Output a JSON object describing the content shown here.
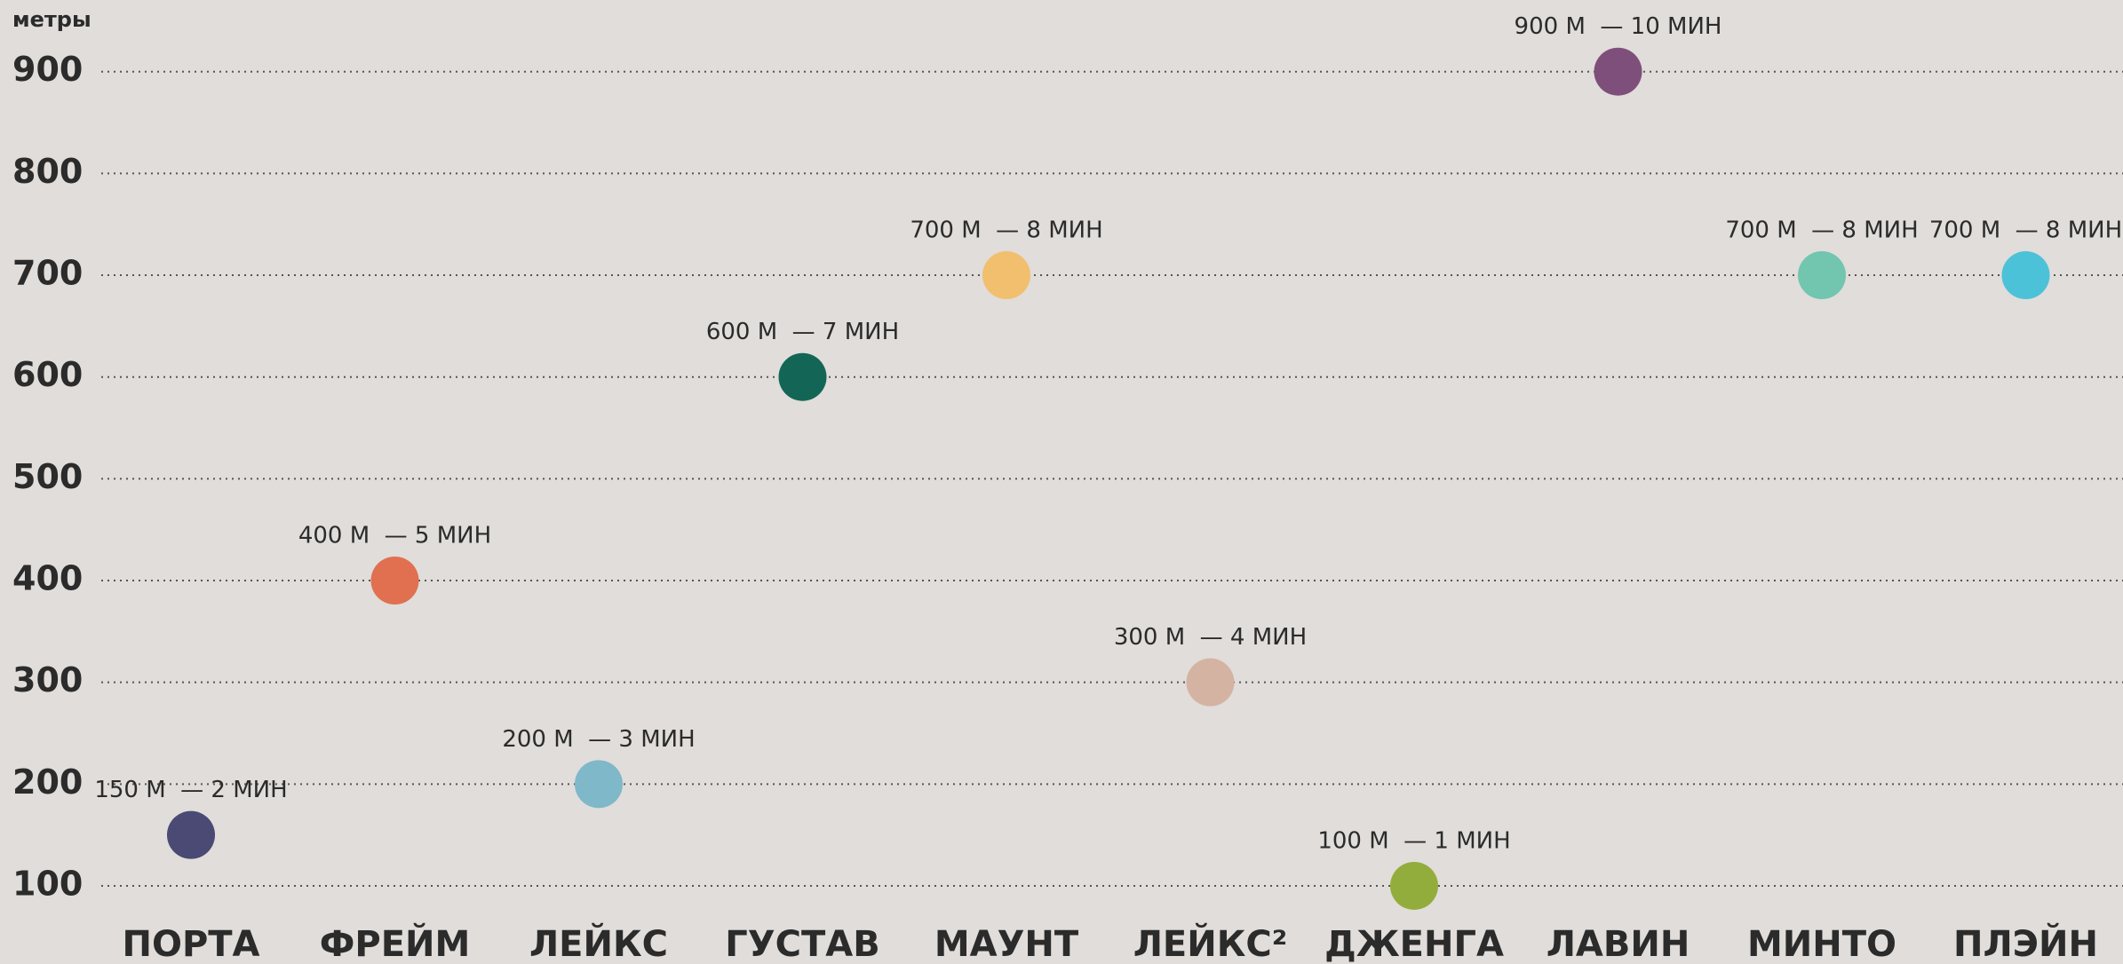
{
  "chart_data": {
    "type": "dot",
    "y_label": "метры",
    "categories": [
      "ПОРТА",
      "ФРЕЙМ",
      "ЛЕЙКС",
      "ГУСТАВ",
      "МАУНТ",
      "ЛЕЙКС²",
      "ДЖЕНГА",
      "ЛАВИН",
      "МИНТО",
      "ПЛЭЙН"
    ],
    "values": [
      150,
      400,
      200,
      600,
      700,
      300,
      100,
      900,
      700,
      700
    ],
    "value_labels": [
      "150 М  — 2 МИН",
      "400 М  — 5 МИН",
      "200 М  — 3 МИН",
      "600 М  — 7 МИН",
      "700 М  — 8 МИН",
      "300 М  — 4 МИН",
      "100 М  — 1 МИН",
      "900 М  — 10 МИН",
      "700 М  — 8 МИН",
      "700 М  — 8 МИН"
    ],
    "colors": [
      "#4a4a75",
      "#e07050",
      "#7fb8c8",
      "#136655",
      "#f2bf6e",
      "#d4b3a3",
      "#93ad3c",
      "#7f4f7b",
      "#72c5ae",
      "#4cc2d8"
    ],
    "ylim": [
      50,
      950
    ],
    "yticks": [
      100,
      200,
      300,
      400,
      500,
      600,
      700,
      800,
      900
    ],
    "grid": true
  }
}
